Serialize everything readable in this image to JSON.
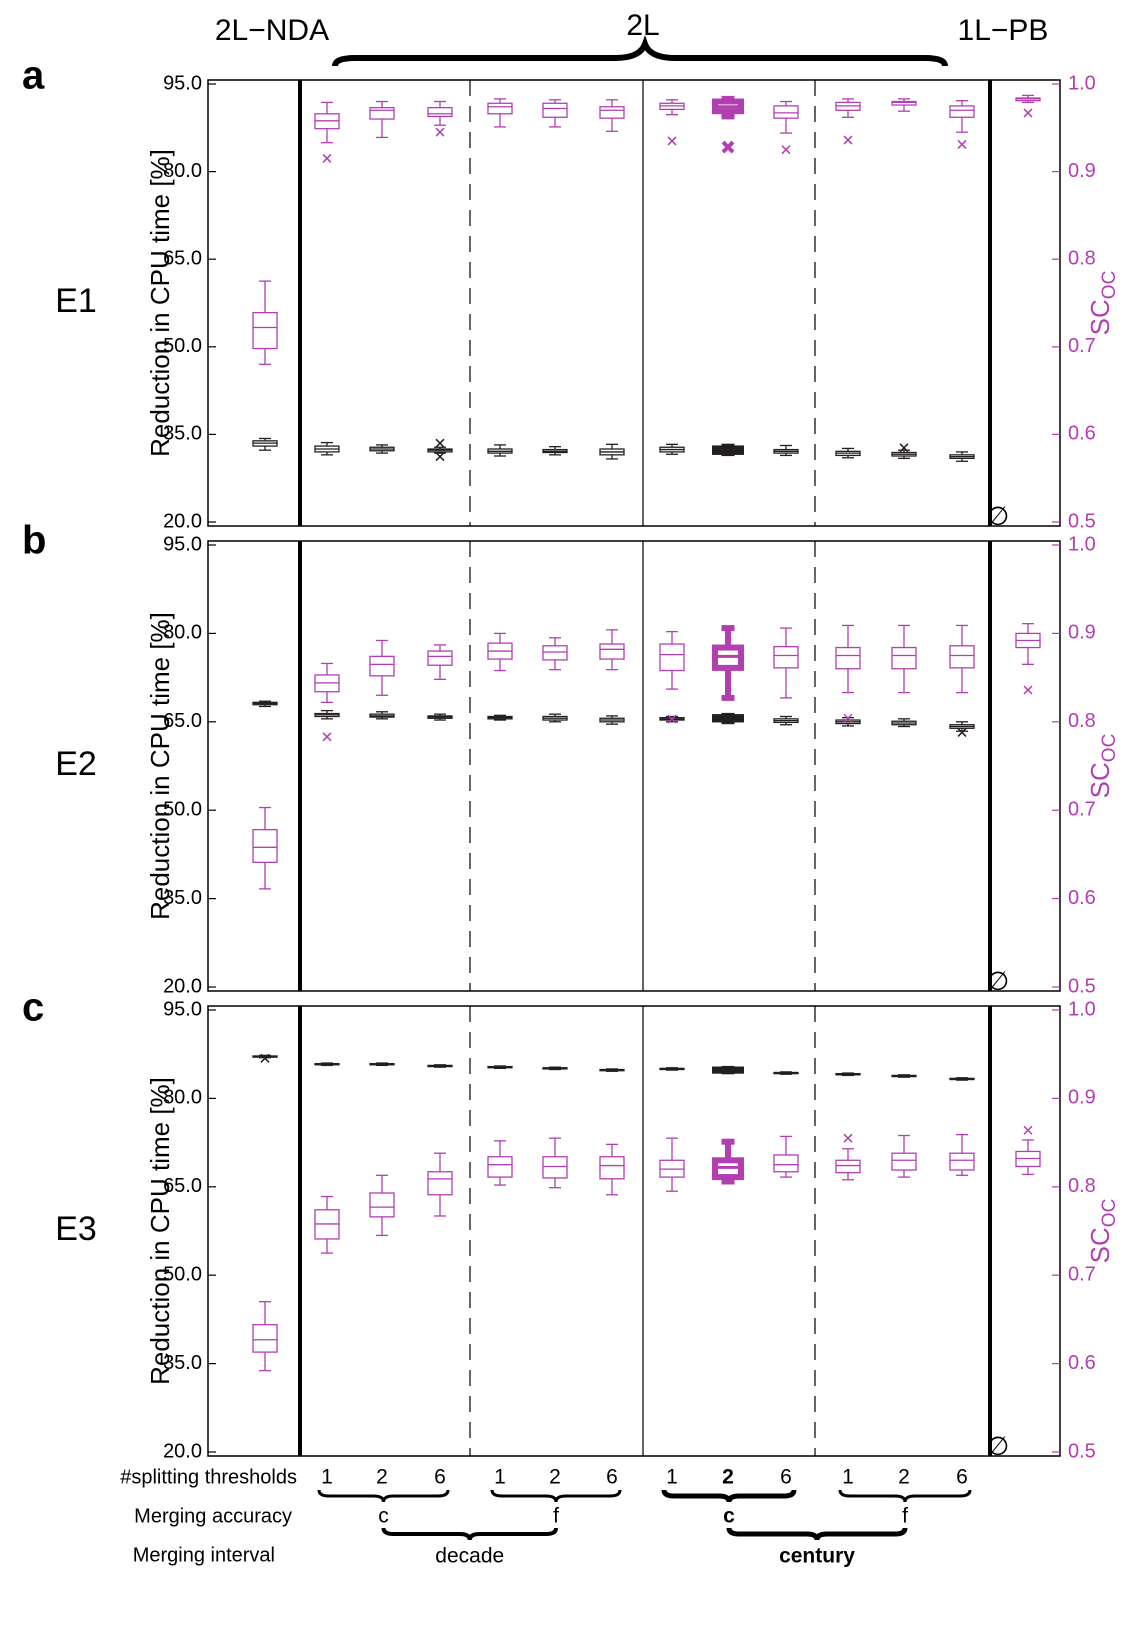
{
  "top_labels": [
    "2L−NDA",
    "2L",
    "1L−PB"
  ],
  "chart_data": [
    {
      "type": "box",
      "panel": "a",
      "label": "E1",
      "ylabel": "Reduction in CPU time [%]",
      "y2label": "SC",
      "y2label_subscript": "OC",
      "ylim": [
        20,
        95
      ],
      "yticks": [
        {
          "value": 95,
          "label": "95.0"
        },
        {
          "value": 80,
          "label": "80.0"
        },
        {
          "value": 65,
          "label": "65.0"
        },
        {
          "value": 50,
          "label": "50.0"
        },
        {
          "value": 35,
          "label": "35.0"
        },
        {
          "value": 20,
          "label": "20.0"
        }
      ],
      "y2lim": [
        0.5,
        1
      ],
      "y2ticks": [
        {
          "value": 1,
          "label": "1.0"
        },
        0.9,
        0.8,
        0.7,
        0.6,
        0.5
      ],
      "emphasis": 8,
      "series": [
        {
          "color": "#231f20",
          "axis": "y",
          "boxes": [
            [
              32.3,
              33.0,
              33.5,
              33.9,
              34.3
            ],
            [
              31.5,
              32.0,
              32.5,
              33.0,
              33.6
            ],
            [
              31.8,
              32.2,
              32.5,
              32.8,
              33.2
            ],
            [
              31.8,
              32.0,
              32.3,
              32.5,
              32.8
            ],
            [
              31.3,
              31.8,
              32.1,
              32.5,
              33.2
            ],
            [
              31.5,
              31.9,
              32.1,
              32.4,
              32.9
            ],
            [
              30.8,
              31.5,
              32.0,
              32.5,
              33.3
            ],
            [
              31.6,
              32.0,
              32.4,
              32.8,
              33.3
            ],
            [
              31.8,
              32.0,
              32.3,
              32.6,
              32.9
            ],
            [
              31.4,
              31.8,
              32.1,
              32.4,
              33.1
            ],
            [
              31.0,
              31.4,
              31.8,
              32.1,
              32.6
            ],
            [
              30.9,
              31.3,
              31.6,
              31.9,
              32.3
            ],
            [
              30.4,
              30.9,
              31.2,
              31.5,
              32.0
            ],
            null
          ],
          "outliers": [
            [],
            [],
            [],
            [
              33.5,
              31.2
            ],
            [],
            [],
            [],
            [],
            [],
            [],
            [],
            [
              32.7
            ],
            [],
            []
          ]
        },
        {
          "color": "#b23fb2",
          "axis": "y2",
          "boxes": [
            [
              0.68,
              0.698,
              0.722,
              0.739,
              0.775
            ],
            [
              0.933,
              0.949,
              0.958,
              0.966,
              0.979
            ],
            [
              0.939,
              0.96,
              0.97,
              0.973,
              0.98
            ],
            [
              0.953,
              0.963,
              0.966,
              0.973,
              0.98
            ],
            [
              0.951,
              0.966,
              0.974,
              0.978,
              0.983
            ],
            [
              0.951,
              0.962,
              0.972,
              0.978,
              0.982
            ],
            [
              0.946,
              0.961,
              0.97,
              0.974,
              0.982
            ],
            [
              0.965,
              0.971,
              0.975,
              0.978,
              0.982
            ],
            [
              0.963,
              0.969,
              0.974,
              0.98,
              0.983
            ],
            [
              0.944,
              0.961,
              0.967,
              0.975,
              0.98
            ],
            [
              0.962,
              0.97,
              0.975,
              0.979,
              0.983
            ],
            [
              0.969,
              0.976,
              0.979,
              0.98,
              0.983
            ],
            [
              0.945,
              0.962,
              0.97,
              0.975,
              0.981
            ],
            [
              0.979,
              0.981,
              0.983,
              0.984,
              0.987
            ]
          ],
          "outliers": [
            [],
            [
              0.915
            ],
            [],
            [
              0.945
            ],
            [],
            [],
            [],
            [
              0.935
            ],
            [
              0.928
            ],
            [
              0.925
            ],
            [
              0.936
            ],
            [],
            [
              0.931
            ],
            [
              0.967
            ]
          ]
        }
      ]
    },
    {
      "type": "box",
      "panel": "b",
      "label": "E2",
      "ylabel": "Reduction in CPU time [%]",
      "y2label": "SC",
      "y2label_subscript": "OC",
      "ylim": [
        20,
        95
      ],
      "yticks": [
        {
          "value": 95,
          "label": "95.0"
        },
        {
          "value": 80,
          "label": "80.0"
        },
        {
          "value": 65,
          "label": "65.0"
        },
        {
          "value": 50,
          "label": "50.0"
        },
        {
          "value": 35,
          "label": "35.0"
        },
        {
          "value": 20,
          "label": "20.0"
        }
      ],
      "y2lim": [
        0.5,
        1
      ],
      "y2ticks": [
        {
          "value": 1,
          "label": "1.0"
        },
        0.9,
        0.8,
        0.7,
        0.6,
        0.5
      ],
      "emphasis": 8,
      "series": [
        {
          "color": "#231f20",
          "axis": "y",
          "boxes": [
            [
              67.6,
              67.9,
              68.1,
              68.3,
              68.5
            ],
            [
              65.5,
              65.9,
              66.2,
              66.4,
              66.9
            ],
            [
              65.5,
              65.8,
              66.0,
              66.3,
              66.7
            ],
            [
              65.3,
              65.6,
              65.8,
              66.0,
              66.3
            ],
            [
              65.3,
              65.5,
              65.7,
              65.9,
              66.1
            ],
            [
              65.0,
              65.3,
              65.6,
              65.9,
              66.3
            ],
            [
              64.6,
              65.0,
              65.3,
              65.6,
              66.0
            ],
            [
              65.0,
              65.3,
              65.5,
              65.7,
              65.9
            ],
            [
              65.1,
              65.4,
              65.6,
              65.8,
              66.0
            ],
            [
              64.5,
              64.9,
              65.2,
              65.5,
              65.9
            ],
            [
              64.3,
              64.7,
              65.0,
              65.3,
              65.7
            ],
            [
              64.2,
              64.5,
              64.8,
              65.1,
              65.5
            ],
            [
              63.4,
              63.9,
              64.2,
              64.5,
              65.0
            ],
            null
          ],
          "outliers": [
            [],
            [],
            [],
            [],
            [],
            [],
            [],
            [],
            [],
            [],
            [],
            [],
            [
              63.2
            ],
            []
          ]
        },
        {
          "color": "#b23fb2",
          "axis": "y2",
          "boxes": [
            [
              0.611,
              0.641,
              0.658,
              0.678,
              0.703
            ],
            [
              0.822,
              0.834,
              0.844,
              0.853,
              0.866
            ],
            [
              0.83,
              0.852,
              0.865,
              0.874,
              0.892
            ],
            [
              0.848,
              0.864,
              0.874,
              0.88,
              0.887
            ],
            [
              0.858,
              0.871,
              0.88,
              0.889,
              0.9
            ],
            [
              0.859,
              0.87,
              0.879,
              0.886,
              0.895
            ],
            [
              0.859,
              0.871,
              0.882,
              0.888,
              0.904
            ],
            [
              0.837,
              0.858,
              0.876,
              0.888,
              0.902
            ],
            [
              0.827,
              0.861,
              0.874,
              0.884,
              0.906
            ],
            [
              0.827,
              0.861,
              0.875,
              0.885,
              0.906
            ],
            [
              0.833,
              0.86,
              0.875,
              0.884,
              0.909
            ],
            [
              0.833,
              0.86,
              0.875,
              0.884,
              0.909
            ],
            [
              0.833,
              0.861,
              0.875,
              0.886,
              0.909
            ],
            [
              0.865,
              0.884,
              0.892,
              0.9,
              0.911
            ]
          ],
          "outliers": [
            [],
            [
              0.783
            ],
            [],
            [],
            [],
            [],
            [],
            [
              0.803
            ],
            [],
            [],
            [
              0.804
            ],
            [],
            [],
            [
              0.836
            ]
          ]
        }
      ]
    },
    {
      "type": "box",
      "panel": "c",
      "label": "E3",
      "ylabel": "Reduction in CPU time [%]",
      "y2label": "SC",
      "y2label_subscript": "OC",
      "ylim": [
        20,
        95
      ],
      "yticks": [
        {
          "value": 95,
          "label": "95.0"
        },
        {
          "value": 80,
          "label": "80.0"
        },
        {
          "value": 65,
          "label": "65.0"
        },
        {
          "value": 50,
          "label": "50.0"
        },
        {
          "value": 35,
          "label": "35.0"
        },
        {
          "value": 20,
          "label": "20.0"
        }
      ],
      "y2lim": [
        0.5,
        1
      ],
      "y2ticks": [
        {
          "value": 1,
          "label": "1.0"
        },
        0.9,
        0.8,
        0.7,
        0.6,
        0.5
      ],
      "emphasis": 8,
      "series": [
        {
          "color": "#231f20",
          "axis": "y",
          "boxes": [
            [
              86.9,
              87.0,
              87.1,
              87.2,
              87.3
            ],
            [
              85.6,
              85.7,
              85.8,
              85.9,
              86.0
            ],
            [
              85.6,
              85.7,
              85.8,
              85.9,
              86.0
            ],
            [
              85.3,
              85.4,
              85.5,
              85.6,
              85.7
            ],
            [
              85.1,
              85.2,
              85.3,
              85.4,
              85.5
            ],
            [
              84.9,
              85.0,
              85.1,
              85.2,
              85.3
            ],
            [
              84.6,
              84.7,
              84.8,
              84.9,
              85.0
            ],
            [
              84.8,
              84.9,
              85.0,
              85.1,
              85.2
            ],
            [
              84.6,
              84.7,
              84.8,
              84.9,
              85.0
            ],
            [
              84.1,
              84.2,
              84.3,
              84.4,
              84.5
            ],
            [
              83.9,
              84.0,
              84.1,
              84.2,
              84.3
            ],
            [
              83.6,
              83.7,
              83.8,
              83.9,
              84.0
            ],
            [
              83.1,
              83.2,
              83.3,
              83.4,
              83.5
            ],
            null
          ],
          "outliers": [
            [
              86.8
            ],
            [],
            [],
            [],
            [],
            [],
            [],
            [],
            [],
            [],
            [],
            [],
            [],
            []
          ]
        },
        {
          "color": "#b23fb2",
          "axis": "y2",
          "boxes": [
            [
              0.592,
              0.613,
              0.627,
              0.644,
              0.67
            ],
            [
              0.725,
              0.741,
              0.758,
              0.774,
              0.789
            ],
            [
              0.745,
              0.766,
              0.777,
              0.793,
              0.813
            ],
            [
              0.767,
              0.791,
              0.809,
              0.817,
              0.838
            ],
            [
              0.802,
              0.811,
              0.825,
              0.834,
              0.852
            ],
            [
              0.799,
              0.81,
              0.823,
              0.834,
              0.855
            ],
            [
              0.791,
              0.809,
              0.824,
              0.834,
              0.848
            ],
            [
              0.795,
              0.811,
              0.82,
              0.83,
              0.855
            ],
            [
              0.806,
              0.811,
              0.822,
              0.83,
              0.851
            ],
            [
              0.811,
              0.817,
              0.825,
              0.836,
              0.857
            ],
            [
              0.808,
              0.816,
              0.824,
              0.83,
              0.843
            ],
            [
              0.811,
              0.819,
              0.83,
              0.838,
              0.858
            ],
            [
              0.813,
              0.819,
              0.83,
              0.838,
              0.859
            ],
            [
              0.814,
              0.823,
              0.832,
              0.84,
              0.853
            ]
          ],
          "outliers": [
            [],
            [],
            [],
            [],
            [],
            [],
            [],
            [],
            [],
            [],
            [
              0.855
            ],
            [],
            [],
            [
              0.864
            ]
          ]
        }
      ]
    }
  ],
  "x_axis": {
    "empty_symbol": "∅",
    "thresholds_label": "#splitting thresholds",
    "thresholds": [
      "1",
      "2",
      "6",
      "1",
      "2",
      "6",
      "1",
      "2",
      "6",
      "1",
      "2",
      "6"
    ],
    "accuracy_label": "Merging accuracy",
    "accuracy": [
      "c",
      "f",
      "c",
      "f"
    ],
    "interval_label": "Merging interval",
    "intervals": [
      "decade",
      "century"
    ],
    "emphasis": {
      "thresholds": 7,
      "accuracy": 2,
      "intervals": 1
    }
  }
}
